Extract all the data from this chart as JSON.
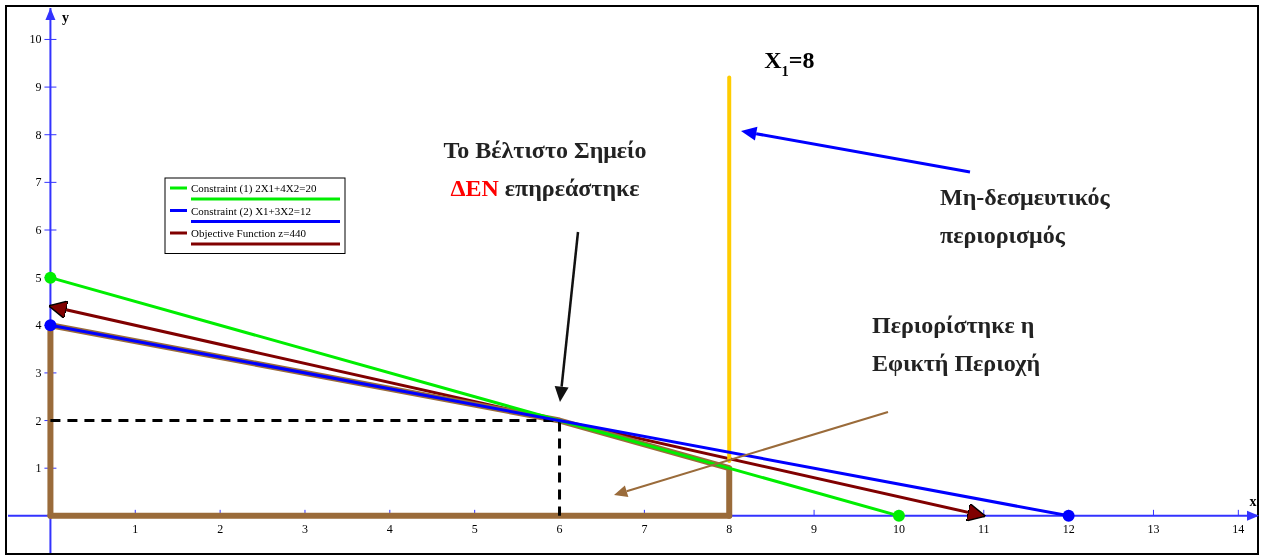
{
  "chart_data": {
    "type": "line",
    "xlabel": "x",
    "ylabel": "y",
    "xlim": [
      -0.5,
      14.22
    ],
    "ylim": [
      -0.78,
      10.66
    ],
    "xticks": [
      1,
      2,
      3,
      4,
      5,
      6,
      7,
      8,
      9,
      10,
      11,
      12,
      13,
      14
    ],
    "yticks": [
      1,
      2,
      3,
      4,
      5,
      6,
      7,
      8,
      9,
      10
    ],
    "grid": false,
    "legend": "top left",
    "series": [
      {
        "name": "Constraint (1) 2X1+4X2=20",
        "color": "#00ee00",
        "x": [
          0,
          10
        ],
        "values": [
          5,
          0
        ],
        "marker": "circle"
      },
      {
        "name": "Constraint (2) X1+3X2=12",
        "color": "#0000ff",
        "x": [
          0,
          12
        ],
        "values": [
          4,
          0
        ],
        "marker": "circle"
      },
      {
        "name": "Objective Function z=440",
        "color": "#800000",
        "x": [
          0,
          11
        ],
        "values": [
          4.4,
          0
        ],
        "marker": "none"
      },
      {
        "color": "#9a6b3a",
        "x": [
          0,
          0,
          6,
          8,
          8
        ],
        "values": [
          0,
          4,
          2,
          1,
          0
        ],
        "marker": "none"
      },
      {
        "color": "#9a6b3a",
        "x": [
          0,
          8
        ],
        "values": [
          0,
          0
        ],
        "marker": "none"
      },
      {
        "color": "#ffcc00",
        "x": [
          8,
          8
        ],
        "values": [
          1.15,
          9.2
        ],
        "marker": "none"
      },
      {
        "color": "#000000",
        "x": [
          0,
          6,
          6
        ],
        "values": [
          2,
          2,
          0
        ],
        "marker": "none",
        "line_style": "dashed"
      }
    ],
    "annotations": [
      "Το Βέλτιστο Σημείο\nΔΕΝ επηρεάστηκε",
      "Μη-δεσμευτικός\nπεριορισμός",
      "Περιορίστηκε η\nΕφικτή Περιοχή",
      {
        "text": "X$_{1}$=8",
        "x": 8,
        "y": 9.2
      }
    ]
  }
}
